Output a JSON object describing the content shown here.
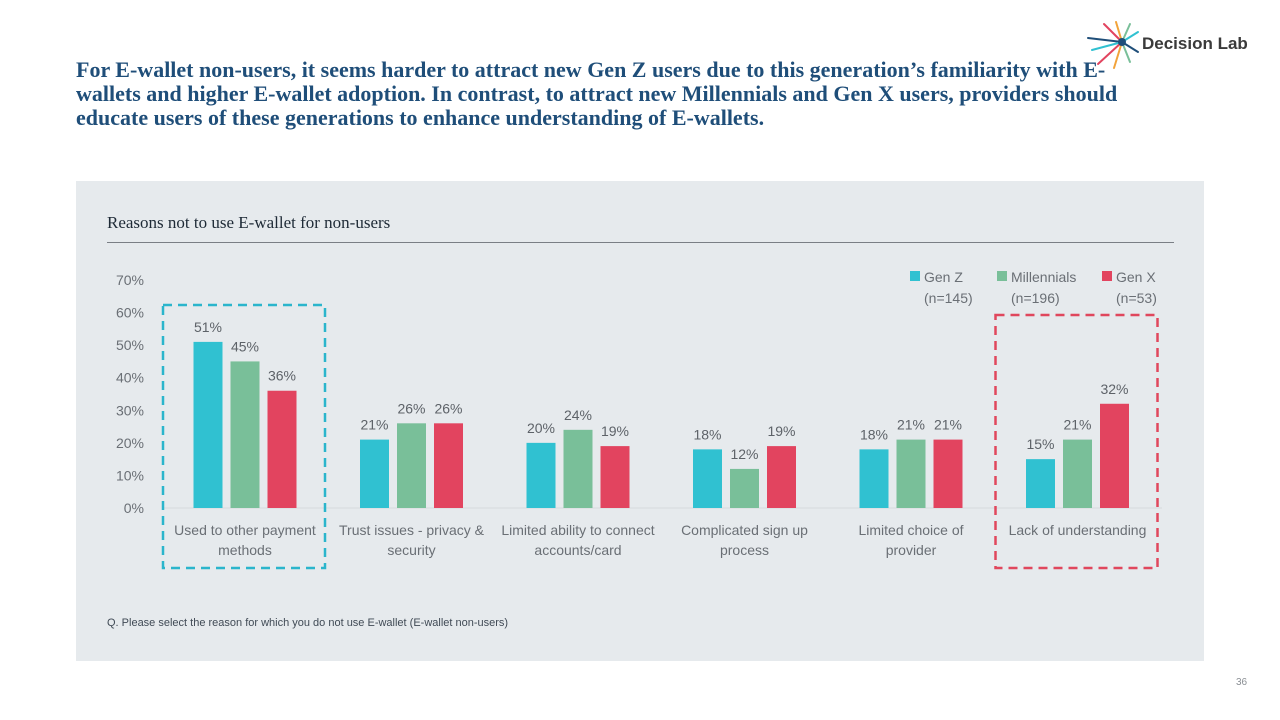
{
  "headline": "For E-wallet non-users, it seems harder to attract new Gen Z users due to this generation’s familiarity with E-wallets and higher E-wallet adoption. In contrast, to attract new Millennials and Gen X users, providers should educate users of these generations to enhance understanding of E-wallets.",
  "logo": {
    "name": "Decision Lab",
    "icon": "starburst-logo-icon"
  },
  "question": "Q. Please select the reason for which you do not use E-wallet (E-wallet non-users)",
  "page_number": "36",
  "colors": {
    "gen_z": "#30c1d1",
    "millennials": "#79bf99",
    "gen_x": "#e2445f",
    "highlight_blue": "#2bb5cc",
    "highlight_red": "#e0475d",
    "headline": "#1f4e79",
    "panel": "#e6eaed"
  },
  "chart_data": {
    "type": "bar",
    "title": "Reasons not to use E-wallet for non-users",
    "xlabel": "",
    "ylabel": "",
    "ylim": [
      0,
      70
    ],
    "yticks": [
      "0%",
      "10%",
      "20%",
      "30%",
      "40%",
      "50%",
      "60%",
      "70%"
    ],
    "categories": [
      [
        "Used to other payment",
        "methods"
      ],
      [
        "Trust issues - privacy &",
        "security"
      ],
      [
        "Limited ability to connect",
        "accounts/card"
      ],
      [
        "Complicated sign up",
        "process"
      ],
      [
        "Limited choice of",
        "provider"
      ],
      [
        "Lack of understanding"
      ]
    ],
    "series": [
      {
        "name": "Gen Z",
        "n": "(n=145)",
        "values": [
          51,
          21,
          20,
          18,
          18,
          15
        ],
        "labels": [
          "51%",
          "21%",
          "20%",
          "18%",
          "18%",
          "15%"
        ]
      },
      {
        "name": "Millennials",
        "n": "(n=196)",
        "values": [
          45,
          26,
          24,
          12,
          21,
          21
        ],
        "labels": [
          "45%",
          "26%",
          "24%",
          "12%",
          "21%",
          "21%"
        ]
      },
      {
        "name": "Gen X",
        "n": "(n=53)",
        "values": [
          36,
          26,
          19,
          19,
          21,
          32
        ],
        "labels": [
          "36%",
          "26%",
          "19%",
          "19%",
          "21%",
          "32%"
        ]
      }
    ],
    "legend_position": "top-right",
    "grid": false,
    "highlighted_categories": [
      {
        "index": 0,
        "style": "dashed-blue-box"
      },
      {
        "index": 5,
        "style": "dashed-red-box"
      }
    ]
  }
}
